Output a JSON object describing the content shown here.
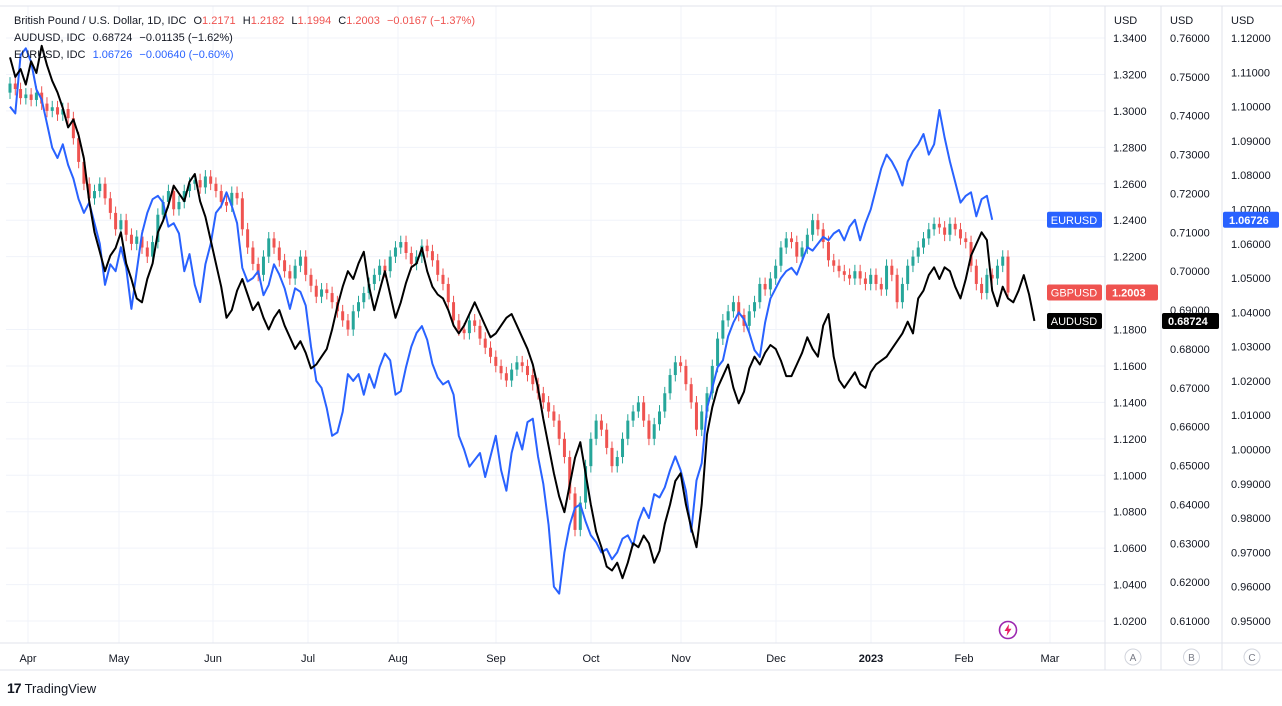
{
  "legend": {
    "gbp": {
      "title": "British Pound / U.S. Dollar, 1D, IDC",
      "o_key": "O",
      "o_val": "1.2171",
      "h_key": "H",
      "h_val": "1.2182",
      "l_key": "L",
      "l_val": "1.1994",
      "c_key": "C",
      "c_val": "1.2003",
      "change": "−0.0167 (−1.37%)"
    },
    "aud": {
      "title": "AUDUSD, IDC",
      "value": "0.68724",
      "change": "−0.01135 (−1.62%)"
    },
    "eur": {
      "title": "EURUSD, IDC",
      "value": "1.06726",
      "change": "−0.00640 (−0.60%)"
    }
  },
  "colors": {
    "up": "#26a69a",
    "down": "#ef5350",
    "aud": "#000000",
    "eur": "#2962ff",
    "grid": "#f0f3fa",
    "axis_text": "#131722",
    "label_gbp": "#ef5350",
    "label_eur": "#2962ff",
    "label_aud": "#000000"
  },
  "branding": "TradingView",
  "chart_data": {
    "type": "line",
    "x_axis": {
      "ticks": [
        "Apr",
        "May",
        "Jun",
        "Jul",
        "Aug",
        "Sep",
        "Oct",
        "Nov",
        "Dec",
        "2023",
        "Feb",
        "Mar"
      ]
    },
    "scales": [
      {
        "id": "A",
        "unit": "USD",
        "ticks": [
          "1.3400",
          "1.3200",
          "1.3000",
          "1.2800",
          "1.2600",
          "1.2400",
          "1.2200",
          "1.1800",
          "1.1600",
          "1.1400",
          "1.1200",
          "1.1000",
          "1.0800",
          "1.0600",
          "1.0400",
          "1.0200"
        ],
        "range": [
          1.018,
          1.35
        ]
      },
      {
        "id": "B",
        "unit": "USD",
        "ticks": [
          "0.76000",
          "0.75000",
          "0.74000",
          "0.73000",
          "0.72000",
          "0.71000",
          "0.70000",
          "0.69000",
          "0.68000",
          "0.67000",
          "0.66000",
          "0.65000",
          "0.64000",
          "0.63000",
          "0.62000",
          "0.61000"
        ],
        "range": [
          0.606,
          0.768
        ]
      },
      {
        "id": "C",
        "unit": "USD",
        "ticks": [
          "1.12000",
          "1.11000",
          "1.10000",
          "1.09000",
          "1.08000",
          "1.07000",
          "1.06000",
          "1.05000",
          "1.04000",
          "1.03000",
          "1.02000",
          "1.01000",
          "1.00000",
          "0.99000",
          "0.98000",
          "0.97000",
          "0.96000",
          "0.95000"
        ],
        "range": [
          0.942,
          1.13
        ]
      }
    ],
    "series": [
      {
        "name": "GBPUSD",
        "type": "candlestick",
        "scale": "A",
        "last_label": "1.2003",
        "close": [
          1.315,
          1.312,
          1.307,
          1.309,
          1.306,
          1.31,
          1.304,
          1.3,
          1.302,
          1.298,
          1.301,
          1.296,
          1.285,
          1.272,
          1.26,
          1.252,
          1.256,
          1.26,
          1.252,
          1.244,
          1.235,
          1.24,
          1.232,
          1.227,
          1.231,
          1.225,
          1.22,
          1.228,
          1.243,
          1.25,
          1.256,
          1.246,
          1.25,
          1.256,
          1.26,
          1.262,
          1.258,
          1.264,
          1.26,
          1.256,
          1.25,
          1.248,
          1.255,
          1.252,
          1.235,
          1.225,
          1.216,
          1.21,
          1.22,
          1.23,
          1.225,
          1.218,
          1.212,
          1.208,
          1.215,
          1.22,
          1.21,
          1.204,
          1.198,
          1.202,
          1.2,
          1.195,
          1.19,
          1.185,
          1.18,
          1.19,
          1.195,
          1.2,
          1.205,
          1.21,
          1.215,
          1.212,
          1.22,
          1.225,
          1.228,
          1.222,
          1.216,
          1.22,
          1.226,
          1.223,
          1.218,
          1.21,
          1.205,
          1.195,
          1.185,
          1.18,
          1.178,
          1.185,
          1.182,
          1.175,
          1.17,
          1.165,
          1.16,
          1.156,
          1.152,
          1.158,
          1.162,
          1.16,
          1.155,
          1.15,
          1.145,
          1.14,
          1.135,
          1.13,
          1.12,
          1.11,
          1.09,
          1.07,
          1.085,
          1.105,
          1.12,
          1.13,
          1.125,
          1.115,
          1.105,
          1.11,
          1.12,
          1.13,
          1.135,
          1.14,
          1.13,
          1.12,
          1.128,
          1.135,
          1.145,
          1.155,
          1.162,
          1.16,
          1.15,
          1.14,
          1.125,
          1.135,
          1.145,
          1.16,
          1.175,
          1.185,
          1.19,
          1.195,
          1.188,
          1.182,
          1.19,
          1.195,
          1.205,
          1.202,
          1.208,
          1.215,
          1.225,
          1.23,
          1.228,
          1.22,
          1.225,
          1.232,
          1.24,
          1.235,
          1.228,
          1.218,
          1.215,
          1.212,
          1.21,
          1.208,
          1.212,
          1.208,
          1.205,
          1.21,
          1.205,
          1.202,
          1.215,
          1.21,
          1.195,
          1.205,
          1.215,
          1.22,
          1.225,
          1.23,
          1.235,
          1.238,
          1.236,
          1.232,
          1.238,
          1.235,
          1.23,
          1.228,
          1.215,
          1.205,
          1.2,
          1.21,
          1.208,
          1.215,
          1.22,
          1.2003
        ]
      },
      {
        "name": "EURUSD",
        "type": "line",
        "scale": "C",
        "last_label": "1.06726",
        "values": [
          1.1,
          1.098,
          1.115,
          1.117,
          1.113,
          1.105,
          1.102,
          1.095,
          1.088,
          1.085,
          1.089,
          1.083,
          1.079,
          1.073,
          1.069,
          1.072,
          1.066,
          1.06,
          1.048,
          1.054,
          1.052,
          1.059,
          1.053,
          1.041,
          1.052,
          1.063,
          1.069,
          1.073,
          1.074,
          1.072,
          1.065,
          1.066,
          1.063,
          1.052,
          1.057,
          1.048,
          1.043,
          1.054,
          1.06,
          1.069,
          1.071,
          1.075,
          1.071,
          1.066,
          1.053,
          1.049,
          1.05,
          1.052,
          1.045,
          1.048,
          1.054,
          1.051,
          1.047,
          1.041,
          1.047,
          1.046,
          1.042,
          1.03,
          1.02,
          1.018,
          1.012,
          1.004,
          1.005,
          1.011,
          1.022,
          1.02,
          1.022,
          1.016,
          1.022,
          1.018,
          1.024,
          1.028,
          1.026,
          1.016,
          1.017,
          1.024,
          1.03,
          1.034,
          1.036,
          1.032,
          1.025,
          1.021,
          1.019,
          1.02,
          1.016,
          1.004,
          1.0,
          0.995,
          0.997,
          0.999,
          0.992,
          0.998,
          1.004,
          0.994,
          0.988,
          0.999,
          1.005,
          1.0,
          1.008,
          1.009,
          0.998,
          0.99,
          0.978,
          0.96,
          0.958,
          0.97,
          0.978,
          0.983,
          0.984,
          0.979,
          0.975,
          0.973,
          0.97,
          0.971,
          0.968,
          0.97,
          0.974,
          0.975,
          0.972,
          0.979,
          0.983,
          0.98,
          0.987,
          0.986,
          0.989,
          0.994,
          0.998,
          0.994,
          0.988,
          0.976,
          0.991,
          0.996,
          1.012,
          1.018,
          1.024,
          1.026,
          1.033,
          1.037,
          1.04,
          1.038,
          1.034,
          1.029,
          1.027,
          1.037,
          1.044,
          1.047,
          1.05,
          1.052,
          1.053,
          1.051,
          1.055,
          1.059,
          1.058,
          1.06,
          1.062,
          1.061,
          1.063,
          1.064,
          1.061,
          1.065,
          1.067,
          1.061,
          1.066,
          1.07,
          1.076,
          1.082,
          1.086,
          1.084,
          1.081,
          1.077,
          1.084,
          1.087,
          1.089,
          1.092,
          1.086,
          1.089,
          1.099,
          1.091,
          1.084,
          1.078,
          1.072,
          1.074,
          1.075,
          1.068,
          1.073,
          1.074,
          1.067
        ]
      },
      {
        "name": "AUDUSD",
        "type": "line",
        "scale": "B",
        "last_label": "0.68724",
        "values": [
          0.755,
          0.75,
          0.752,
          0.748,
          0.754,
          0.751,
          0.758,
          0.753,
          0.749,
          0.746,
          0.742,
          0.737,
          0.739,
          0.735,
          0.729,
          0.718,
          0.71,
          0.705,
          0.7,
          0.704,
          0.706,
          0.71,
          0.702,
          0.698,
          0.693,
          0.692,
          0.698,
          0.702,
          0.71,
          0.713,
          0.717,
          0.722,
          0.72,
          0.718,
          0.723,
          0.725,
          0.718,
          0.714,
          0.708,
          0.702,
          0.696,
          0.688,
          0.69,
          0.695,
          0.698,
          0.694,
          0.69,
          0.692,
          0.688,
          0.685,
          0.688,
          0.69,
          0.686,
          0.683,
          0.68,
          0.682,
          0.679,
          0.675,
          0.676,
          0.678,
          0.68,
          0.685,
          0.691,
          0.696,
          0.7,
          0.698,
          0.702,
          0.705,
          0.696,
          0.69,
          0.695,
          0.7,
          0.694,
          0.688,
          0.692,
          0.697,
          0.701,
          0.702,
          0.706,
          0.7,
          0.696,
          0.694,
          0.693,
          0.69,
          0.686,
          0.684,
          0.686,
          0.689,
          0.692,
          0.689,
          0.686,
          0.683,
          0.684,
          0.686,
          0.688,
          0.689,
          0.686,
          0.683,
          0.68,
          0.676,
          0.67,
          0.662,
          0.655,
          0.648,
          0.642,
          0.638,
          0.645,
          0.652,
          0.656,
          0.648,
          0.64,
          0.633,
          0.629,
          0.624,
          0.623,
          0.625,
          0.621,
          0.625,
          0.63,
          0.629,
          0.632,
          0.63,
          0.625,
          0.628,
          0.635,
          0.64,
          0.646,
          0.648,
          0.64,
          0.634,
          0.629,
          0.64,
          0.658,
          0.665,
          0.67,
          0.673,
          0.676,
          0.67,
          0.666,
          0.669,
          0.675,
          0.678,
          0.676,
          0.679,
          0.681,
          0.68,
          0.677,
          0.673,
          0.673,
          0.676,
          0.679,
          0.683,
          0.68,
          0.678,
          0.686,
          0.689,
          0.678,
          0.672,
          0.67,
          0.672,
          0.674,
          0.671,
          0.67,
          0.674,
          0.676,
          0.677,
          0.678,
          0.68,
          0.682,
          0.684,
          0.687,
          0.684,
          0.693,
          0.695,
          0.699,
          0.701,
          0.698,
          0.701,
          0.7,
          0.696,
          0.693,
          0.698,
          0.704,
          0.707,
          0.71,
          0.708,
          0.695,
          0.691,
          0.696,
          0.693,
          0.692,
          0.695,
          0.699,
          0.694,
          0.6872
        ]
      }
    ],
    "pane_labels": [
      "A",
      "B",
      "C"
    ]
  }
}
